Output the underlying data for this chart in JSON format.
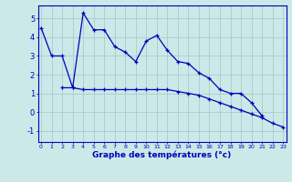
{
  "hours": [
    0,
    1,
    2,
    3,
    4,
    5,
    6,
    7,
    8,
    9,
    10,
    11,
    12,
    13,
    14,
    15,
    16,
    17,
    18,
    19,
    20,
    21,
    22,
    23
  ],
  "temp_line1": [
    4.5,
    3.0,
    3.0,
    1.3,
    5.3,
    4.4,
    4.4,
    3.5,
    3.2,
    2.7,
    3.8,
    4.1,
    3.3,
    2.7,
    2.6,
    2.1,
    1.8,
    1.2,
    1.0,
    1.0,
    0.5,
    -0.2,
    null,
    null
  ],
  "temp_line2": [
    null,
    null,
    1.3,
    1.3,
    1.2,
    1.2,
    1.2,
    1.2,
    1.2,
    1.2,
    1.2,
    1.2,
    1.2,
    1.1,
    1.0,
    0.9,
    0.7,
    0.5,
    0.3,
    0.1,
    -0.1,
    -0.3,
    -0.6,
    -0.8
  ],
  "background_color": "#cce8e8",
  "grid_color": "#aacccc",
  "line_color": "#0000bb",
  "xlabel": "Graphe des températures (°c)",
  "ylabel_ticks": [
    -1,
    0,
    1,
    2,
    3,
    4,
    5
  ],
  "ylim": [
    -1.6,
    5.7
  ],
  "xlim": [
    -0.3,
    23.3
  ]
}
